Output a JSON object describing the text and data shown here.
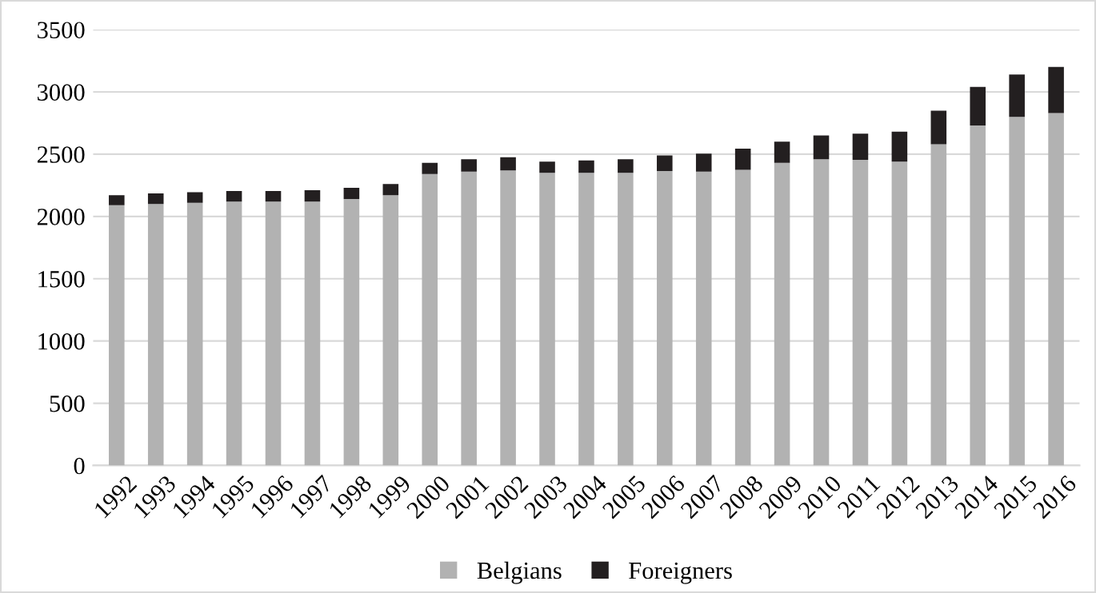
{
  "chart_data": {
    "type": "bar",
    "stacked": true,
    "categories": [
      "1992",
      "1993",
      "1994",
      "1995",
      "1996",
      "1997",
      "1998",
      "1999",
      "2000",
      "2001",
      "2002",
      "2003",
      "2004",
      "2005",
      "2006",
      "2007",
      "2008",
      "2009",
      "2010",
      "2011",
      "2012",
      "2013",
      "2014",
      "2015",
      "2016"
    ],
    "series": [
      {
        "name": "Belgians",
        "color": "#b2b2b2",
        "values": [
          2090,
          2100,
          2110,
          2120,
          2120,
          2120,
          2140,
          2170,
          2340,
          2360,
          2370,
          2350,
          2350,
          2350,
          2365,
          2360,
          2375,
          2430,
          2460,
          2455,
          2440,
          2580,
          2730,
          2800,
          2830
        ]
      },
      {
        "name": "Foreigners",
        "color": "#231f20",
        "values": [
          80,
          85,
          85,
          85,
          85,
          90,
          90,
          90,
          90,
          100,
          105,
          90,
          100,
          110,
          125,
          145,
          170,
          170,
          190,
          210,
          240,
          270,
          310,
          340,
          370
        ]
      }
    ],
    "ylim": [
      0,
      3500
    ],
    "yticks": [
      0,
      500,
      1000,
      1500,
      2000,
      2500,
      3000,
      3500
    ],
    "grid": "y",
    "legend": "bottom"
  }
}
